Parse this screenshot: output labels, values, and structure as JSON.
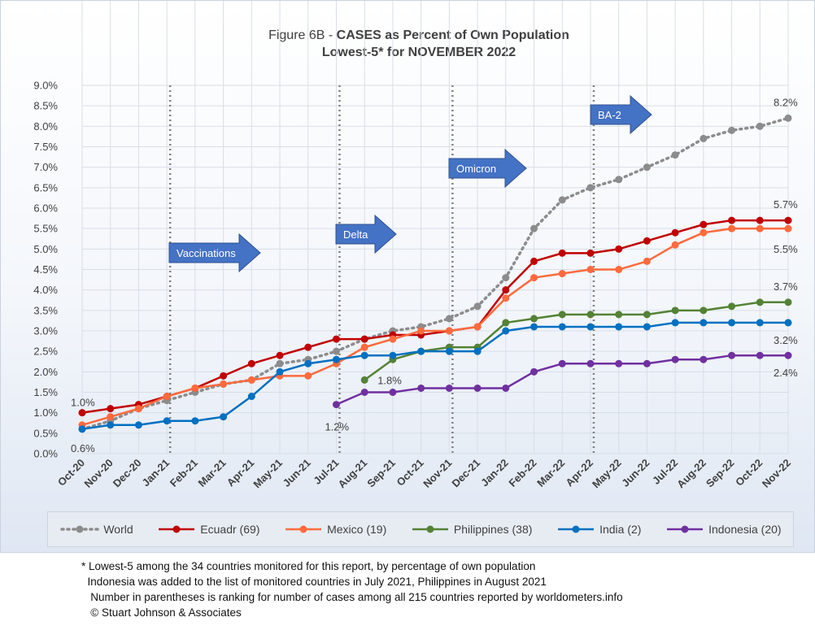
{
  "chart_data": {
    "type": "line",
    "title": "Figure 6B - CASES as Percent of Own Population",
    "title_prefix": "Figure 6B - ",
    "title_bold": "CASES as Percent of Own Population",
    "subtitle": "Lowest-5* for NOVEMBER 2022",
    "ylim": [
      0,
      9.0
    ],
    "y_ticks": [
      "0.0%",
      "0.5%",
      "1.0%",
      "1.5%",
      "2.0%",
      "2.5%",
      "3.0%",
      "3.5%",
      "4.0%",
      "4.5%",
      "5.0%",
      "5.5%",
      "6.0%",
      "6.5%",
      "7.0%",
      "7.5%",
      "8.0%",
      "8.5%",
      "9.0%"
    ],
    "categories": [
      "Oct-20",
      "Nov-20",
      "Dec-20",
      "Jan-21",
      "Feb-21",
      "Mar-21",
      "Apr-21",
      "May-21",
      "Jun-21",
      "Jul-21",
      "Aug-21",
      "Sep-21",
      "Oct-21",
      "Nov-21",
      "Dec-21",
      "Jan-22",
      "Feb-22",
      "Mar-22",
      "Apr-22",
      "May-22",
      "Jun-22",
      "Jul-22",
      "Aug-22",
      "Sep-22",
      "Oct-22",
      "Nov-22"
    ],
    "grid": "vertical and horizontal",
    "legend_position": "bottom",
    "series": [
      {
        "name": "World",
        "color": "#8c8c8c",
        "dashed": true,
        "values": [
          0.6,
          0.8,
          1.1,
          1.3,
          1.5,
          1.7,
          1.8,
          2.2,
          2.3,
          2.5,
          2.8,
          3.0,
          3.1,
          3.3,
          3.6,
          4.3,
          5.5,
          6.2,
          6.5,
          6.7,
          7.0,
          7.3,
          7.7,
          7.9,
          8.0,
          8.2
        ]
      },
      {
        "name": "Ecuadr (69)",
        "color": "#c00000",
        "dashed": false,
        "values": [
          1.0,
          1.1,
          1.2,
          1.4,
          1.6,
          1.9,
          2.2,
          2.4,
          2.6,
          2.8,
          2.8,
          2.9,
          2.9,
          3.0,
          3.1,
          4.0,
          4.7,
          4.9,
          4.9,
          5.0,
          5.2,
          5.4,
          5.6,
          5.7,
          5.7,
          5.7
        ]
      },
      {
        "name": "Mexico (19)",
        "color": "#ff6a3d",
        "dashed": false,
        "values": [
          0.7,
          0.9,
          1.1,
          1.4,
          1.6,
          1.7,
          1.8,
          1.9,
          1.9,
          2.2,
          2.6,
          2.8,
          3.0,
          3.0,
          3.1,
          3.8,
          4.3,
          4.4,
          4.5,
          4.5,
          4.7,
          5.1,
          5.4,
          5.5,
          5.5,
          5.5
        ]
      },
      {
        "name": "Philippines (38)",
        "color": "#548235",
        "dashed": false,
        "values": [
          null,
          null,
          null,
          null,
          null,
          null,
          null,
          null,
          null,
          null,
          1.8,
          2.3,
          2.5,
          2.6,
          2.6,
          3.2,
          3.3,
          3.4,
          3.4,
          3.4,
          3.4,
          3.5,
          3.5,
          3.6,
          3.7,
          3.7
        ]
      },
      {
        "name": "India (2)",
        "color": "#0070c0",
        "dashed": false,
        "values": [
          0.6,
          0.7,
          0.7,
          0.8,
          0.8,
          0.9,
          1.4,
          2.0,
          2.2,
          2.3,
          2.4,
          2.4,
          2.5,
          2.5,
          2.5,
          3.0,
          3.1,
          3.1,
          3.1,
          3.1,
          3.1,
          3.2,
          3.2,
          3.2,
          3.2,
          3.2
        ]
      },
      {
        "name": "Indonesia (20)",
        "color": "#7030a0",
        "dashed": false,
        "values": [
          null,
          null,
          null,
          null,
          null,
          null,
          null,
          null,
          null,
          1.2,
          1.5,
          1.5,
          1.6,
          1.6,
          1.6,
          1.6,
          2.0,
          2.2,
          2.2,
          2.2,
          2.2,
          2.3,
          2.3,
          2.4,
          2.4,
          2.4
        ]
      }
    ],
    "data_labels": [
      {
        "text": "1.0%",
        "category": "Oct-20",
        "value": 1.0
      },
      {
        "text": "0.6%",
        "category": "Oct-20",
        "value": 0.6
      },
      {
        "text": "1.2%",
        "category": "Jul-21",
        "value": 1.2
      },
      {
        "text": "1.8%",
        "category": "Aug-21",
        "value": 1.8
      },
      {
        "text": "8.2%",
        "category": "Nov-22",
        "value": 8.2
      },
      {
        "text": "5.7%",
        "category": "Nov-22",
        "value": 5.7
      },
      {
        "text": "5.5%",
        "category": "Nov-22",
        "value": 5.5
      },
      {
        "text": "3.7%",
        "category": "Nov-22",
        "value": 3.7
      },
      {
        "text": "3.2%",
        "category": "Nov-22",
        "value": 3.2
      },
      {
        "text": "2.4%",
        "category": "Nov-22",
        "value": 2.4
      }
    ],
    "annotations": [
      {
        "text": "Vaccinations",
        "line_at": "Jan-21",
        "color": "#4472c4"
      },
      {
        "text": "Delta",
        "line_at": "Jul-21",
        "color": "#4472c4"
      },
      {
        "text": "Omicron",
        "line_at": "Nov-21",
        "color": "#4472c4"
      },
      {
        "text": "BA-2",
        "line_at": "Apr-22",
        "color": "#4472c4"
      }
    ]
  },
  "footnotes": [
    "* Lowest-5 among the 34 countries monitored for this report, by percentage of own population",
    "  Indonesia was added to the list of monitored countries in July 2021, Philippines in August 2021",
    "   Number in parentheses is ranking for number of cases among all 215 countries reported by worldometers.info",
    "   © Stuart Johnson & Associates"
  ]
}
